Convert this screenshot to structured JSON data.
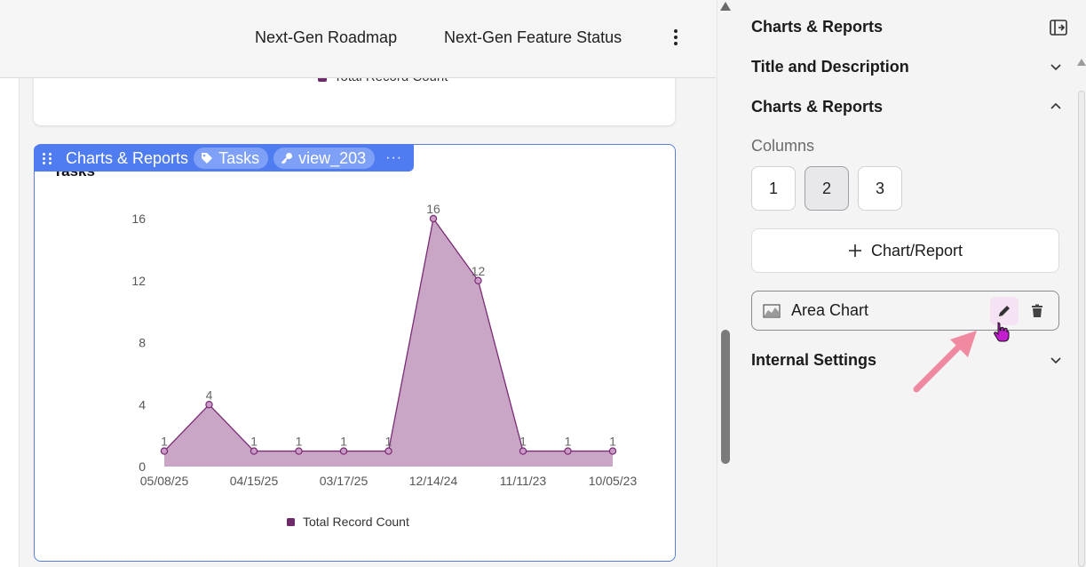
{
  "topbar": {
    "nav": [
      "Next-Gen Roadmap",
      "Next-Gen Feature Status"
    ],
    "more_icon": "vertical-ellipsis-icon"
  },
  "top_card": {
    "legend_label": "Total Record Count"
  },
  "chart_card": {
    "toolbar": {
      "block_label": "Charts & Reports",
      "tag_label": "Tasks",
      "tag_icon": "tag-icon",
      "view_label": "view_203",
      "view_icon": "key-icon",
      "more_label": "···"
    }
  },
  "chart_data": {
    "type": "area",
    "title": "Tasks",
    "x": [
      "05/08/25",
      "",
      "04/15/25",
      "",
      "03/17/25",
      "",
      "12/14/24",
      "",
      "11/11/23",
      "",
      "10/05/23"
    ],
    "xticks": [
      "05/08/25",
      "04/15/25",
      "03/17/25",
      "12/14/24",
      "11/11/23",
      "10/05/23"
    ],
    "series": [
      {
        "name": "Total Record Count",
        "values": [
          1,
          4,
          1,
          1,
          1,
          1,
          16,
          12,
          1,
          1,
          1
        ]
      }
    ],
    "ylim": [
      0,
      16
    ],
    "yticks": [
      0,
      4,
      8,
      12,
      16
    ],
    "data_labels": true,
    "legend": "bottom",
    "colors": {
      "fill": "#c9a6c6",
      "line": "#7a2b74",
      "legend": "#6e2a6b"
    }
  },
  "panel": {
    "title": "Charts & Reports",
    "sections": {
      "title_desc": "Title and Description",
      "charts_reports": "Charts & Reports",
      "internal": "Internal Settings"
    },
    "columns_label": "Columns",
    "column_options": [
      "1",
      "2",
      "3"
    ],
    "selected_columns": "2",
    "add_button_label": "Chart/Report",
    "items": [
      {
        "label": "Area Chart",
        "icon": "area-chart-icon"
      }
    ]
  }
}
